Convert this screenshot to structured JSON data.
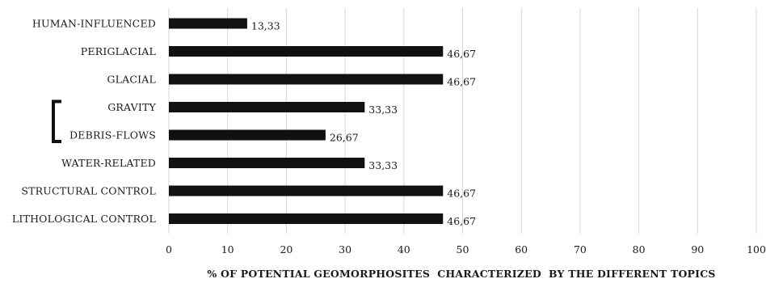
{
  "chart_data": {
    "type": "bar",
    "orientation": "horizontal",
    "categories": [
      "HUMAN-INFLUENCED",
      "PERIGLACIAL",
      "GLACIAL",
      "GRAVITY",
      "DEBRIS-FLOWS",
      "WATER-RELATED",
      "STRUCTURAL CONTROL",
      "LITHOLOGICAL CONTROL"
    ],
    "values": [
      13.33,
      46.67,
      46.67,
      33.33,
      26.67,
      33.33,
      46.67,
      46.67
    ],
    "value_labels": [
      "13,33",
      "46,67",
      "46,67",
      "33,33",
      "26,67",
      "33,33",
      "46,67",
      "46,67"
    ],
    "xlabel": "% OF POTENTIAL GEOMORPHOSITES  CHARACTERIZED  BY THE DIFFERENT TOPICS",
    "ylabel": "",
    "xlim": [
      0,
      100
    ],
    "xticks": [
      0,
      10,
      20,
      30,
      40,
      50,
      60,
      70,
      80,
      90,
      100
    ],
    "grid": "vertical",
    "bar_color": "#111111",
    "bracket_groups": [
      [
        "GRAVITY",
        "DEBRIS-FLOWS"
      ]
    ]
  }
}
